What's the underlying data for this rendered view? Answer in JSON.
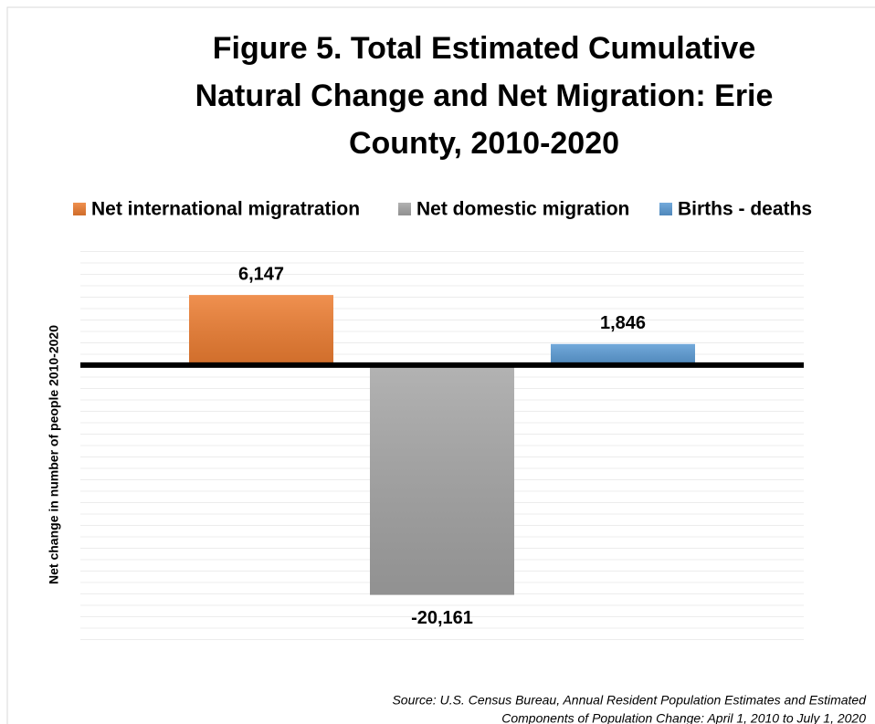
{
  "chart_data": {
    "type": "bar",
    "title": [
      "Figure 5. Total Estimated Cumulative",
      "Natural Change and Net Migration:  Erie",
      "County, 2010-2020"
    ],
    "y_label": "Net change in number of people 2010-2020",
    "categories": [
      null
    ],
    "series": [
      {
        "name": "Net international migratration",
        "color": "#ed7d31",
        "values": [
          6147
        ],
        "value_labels": [
          "6,147"
        ]
      },
      {
        "name": "Net domestic migration",
        "color": "#a5a5a5",
        "values": [
          -20161
        ],
        "value_labels": [
          "-20,161"
        ]
      },
      {
        "name": "Births  - deaths",
        "color": "#5b9bd5",
        "values": [
          1846
        ],
        "value_labels": [
          "1,846"
        ]
      }
    ],
    "ylim": [
      -25000,
      10000
    ],
    "legend": "top",
    "source": [
      "Source: U.S. Census Bureau, Annual Resident Population Estimates and Estimated",
      "Components of Population Change: April 1, 2010 to July 1, 2020"
    ]
  }
}
